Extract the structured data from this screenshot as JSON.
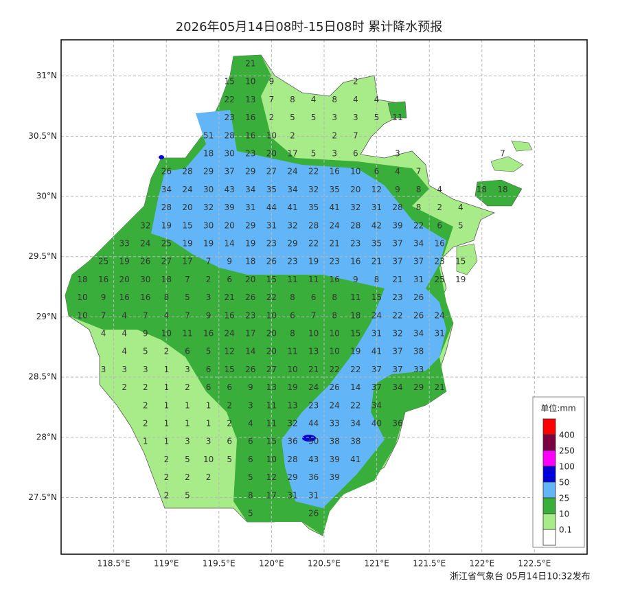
{
  "title": "2026年05月14日08时-15日08时 累计降水预报",
  "footer": "浙江省气象台 05月14日10:32发布",
  "lonlim": [
    118.0,
    123.0
  ],
  "latlim": [
    27.03,
    31.3
  ],
  "lon_ticks": [
    {
      "value": 118.5,
      "label": "118.5°E"
    },
    {
      "value": 119,
      "label": "119°E"
    },
    {
      "value": 119.5,
      "label": "119.5°E"
    },
    {
      "value": 120,
      "label": "120°E"
    },
    {
      "value": 120.5,
      "label": "120.5°E"
    },
    {
      "value": 121,
      "label": "121°E"
    },
    {
      "value": 121.5,
      "label": "121.5°E"
    },
    {
      "value": 122,
      "label": "122°E"
    },
    {
      "value": 122.5,
      "label": "122.5°E"
    }
  ],
  "lat_ticks": [
    {
      "value": 31,
      "label": "31°N"
    },
    {
      "value": 30.5,
      "label": "30.5°N"
    },
    {
      "value": 30,
      "label": "30°N"
    },
    {
      "value": 29.5,
      "label": "29.5°N"
    },
    {
      "value": 29,
      "label": "29°N"
    },
    {
      "value": 28.5,
      "label": "28.5°N"
    },
    {
      "value": 28,
      "label": "28°N"
    },
    {
      "value": 27.5,
      "label": "27.5°N"
    }
  ],
  "legend": {
    "title": "单位:mm",
    "colors": [
      "#ff0000",
      "#7a0040",
      "#ff00ff",
      "#0000dd",
      "#62b6f7",
      "#3aae3a",
      "#a8ec8a",
      "#ffffff"
    ],
    "levels": [
      400,
      250,
      100,
      50,
      25,
      10,
      0.1
    ]
  },
  "grid": {
    "rows": [
      [
        null,
        null,
        null,
        null,
        null,
        null,
        null,
        null,
        21
      ],
      [
        null,
        null,
        null,
        null,
        null,
        null,
        null,
        15,
        10,
        9,
        null,
        null,
        null,
        2
      ],
      [
        null,
        null,
        null,
        null,
        null,
        null,
        null,
        22,
        13,
        7,
        8,
        4,
        8,
        4,
        4
      ],
      [
        null,
        null,
        null,
        null,
        null,
        null,
        null,
        23,
        16,
        2,
        5,
        5,
        3,
        3,
        5,
        11
      ],
      [
        null,
        null,
        null,
        null,
        null,
        null,
        51,
        28,
        16,
        10,
        2,
        null,
        2,
        7
      ],
      [
        null,
        null,
        null,
        null,
        null,
        null,
        18,
        30,
        23,
        20,
        17,
        5,
        3,
        6,
        null,
        3,
        null,
        null,
        null,
        null,
        7
      ],
      [
        null,
        null,
        null,
        null,
        26,
        28,
        29,
        37,
        29,
        27,
        24,
        22,
        16,
        10,
        6,
        4,
        7
      ],
      [
        null,
        null,
        null,
        null,
        34,
        24,
        30,
        43,
        34,
        35,
        34,
        32,
        35,
        20,
        12,
        9,
        8,
        4,
        null,
        18,
        18
      ],
      [
        null,
        null,
        null,
        null,
        28,
        20,
        32,
        39,
        31,
        44,
        41,
        35,
        41,
        32,
        31,
        28,
        8,
        2,
        4
      ],
      [
        null,
        null,
        null,
        32,
        19,
        15,
        30,
        20,
        29,
        31,
        32,
        28,
        24,
        28,
        42,
        39,
        22,
        6,
        5
      ],
      [
        null,
        null,
        33,
        24,
        25,
        19,
        19,
        14,
        19,
        23,
        29,
        22,
        21,
        23,
        35,
        37,
        34,
        16
      ],
      [
        null,
        25,
        19,
        26,
        27,
        17,
        7,
        9,
        18,
        26,
        23,
        19,
        23,
        16,
        21,
        37,
        37,
        23,
        15
      ],
      [
        18,
        16,
        20,
        30,
        18,
        7,
        2,
        6,
        20,
        15,
        11,
        11,
        16,
        9,
        8,
        21,
        31,
        25,
        19
      ],
      [
        10,
        9,
        16,
        16,
        8,
        5,
        3,
        21,
        26,
        22,
        8,
        6,
        8,
        11,
        15,
        23,
        26
      ],
      [
        10,
        7,
        4,
        7,
        4,
        7,
        9,
        16,
        23,
        10,
        6,
        7,
        8,
        18,
        24,
        22,
        26,
        24
      ],
      [
        null,
        4,
        4,
        9,
        10,
        11,
        16,
        24,
        17,
        20,
        8,
        10,
        10,
        15,
        31,
        32,
        34,
        31
      ],
      [
        null,
        null,
        4,
        5,
        2,
        6,
        5,
        12,
        14,
        20,
        11,
        13,
        10,
        19,
        41,
        37,
        38
      ],
      [
        null,
        3,
        3,
        3,
        1,
        3,
        6,
        15,
        26,
        27,
        10,
        21,
        22,
        22,
        37,
        37,
        33
      ],
      [
        null,
        null,
        2,
        2,
        1,
        2,
        6,
        6,
        9,
        13,
        19,
        24,
        26,
        14,
        37,
        34,
        29,
        21
      ],
      [
        null,
        null,
        null,
        2,
        1,
        1,
        1,
        2,
        3,
        11,
        13,
        23,
        24,
        22,
        34
      ],
      [
        null,
        null,
        null,
        2,
        1,
        1,
        1,
        2,
        4,
        11,
        32,
        44,
        33,
        34,
        40,
        36
      ],
      [
        null,
        null,
        null,
        1,
        1,
        3,
        3,
        6,
        6,
        15,
        36,
        50,
        38,
        38
      ],
      [
        null,
        null,
        null,
        null,
        2,
        5,
        10,
        5,
        6,
        10,
        28,
        43,
        39,
        41
      ],
      [
        null,
        null,
        null,
        null,
        2,
        2,
        2,
        null,
        5,
        12,
        29,
        36,
        39
      ],
      [
        null,
        null,
        null,
        null,
        2,
        5,
        null,
        null,
        8,
        17,
        31,
        31
      ],
      [
        null,
        null,
        null,
        null,
        null,
        null,
        null,
        null,
        5,
        null,
        null,
        26
      ]
    ]
  }
}
